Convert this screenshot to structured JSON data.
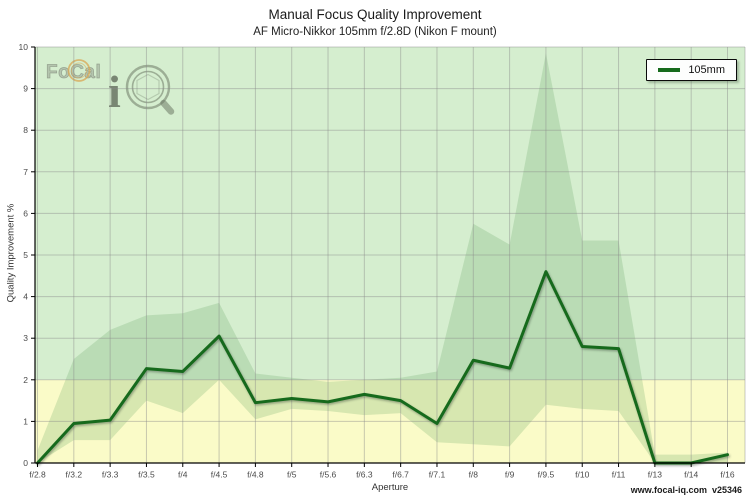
{
  "watermark": {
    "brand": "FoCal",
    "i_glyph": "i"
  },
  "footer": {
    "text": "www.focal-iq.com  v25346"
  },
  "chart_data": {
    "type": "line",
    "title": "Manual Focus Quality Improvement",
    "subtitle": "AF Micro-Nikkor 105mm f/2.8D (Nikon F mount)",
    "xlabel": "Aperture",
    "ylabel": "Quality Improvement %",
    "ylim": [
      0,
      10
    ],
    "grid": true,
    "legend_position": "top-right",
    "categories": [
      "f/2.8",
      "f/3.2",
      "f/3.3",
      "f/3.5",
      "f/4",
      "f/4.5",
      "f/4.8",
      "f/5",
      "f/5.6",
      "f/6.3",
      "f/6.7",
      "f/7.1",
      "f/8",
      "f/9",
      "f/9.5",
      "f/10",
      "f/11",
      "f/13",
      "f/14",
      "f/16"
    ],
    "series": [
      {
        "name": "105mm",
        "color": "#166b1c",
        "values": [
          0,
          0.95,
          1.03,
          2.27,
          2.2,
          3.05,
          1.45,
          1.55,
          1.47,
          1.65,
          1.5,
          0.95,
          2.47,
          2.28,
          4.6,
          2.8,
          2.75,
          0,
          0,
          0.2
        ],
        "band_low": [
          0,
          0.55,
          0.55,
          1.5,
          1.2,
          2.0,
          1.05,
          1.3,
          1.25,
          1.15,
          1.2,
          0.5,
          0.45,
          0.4,
          1.4,
          1.3,
          1.25,
          0,
          0,
          0
        ],
        "band_high": [
          0.3,
          2.5,
          3.2,
          3.55,
          3.6,
          3.85,
          2.15,
          2.05,
          1.95,
          2.0,
          2.05,
          2.2,
          5.75,
          5.25,
          9.85,
          5.35,
          5.35,
          0.2,
          0.2,
          0.25
        ]
      }
    ],
    "band_color": "#5a9e5a",
    "band_opacity": 0.22,
    "zones": [
      {
        "name": "above-threshold",
        "from": 2,
        "to": 10,
        "color": "#d5eecf"
      },
      {
        "name": "below-threshold",
        "from": 0,
        "to": 2,
        "color": "#fafbc8"
      }
    ]
  }
}
